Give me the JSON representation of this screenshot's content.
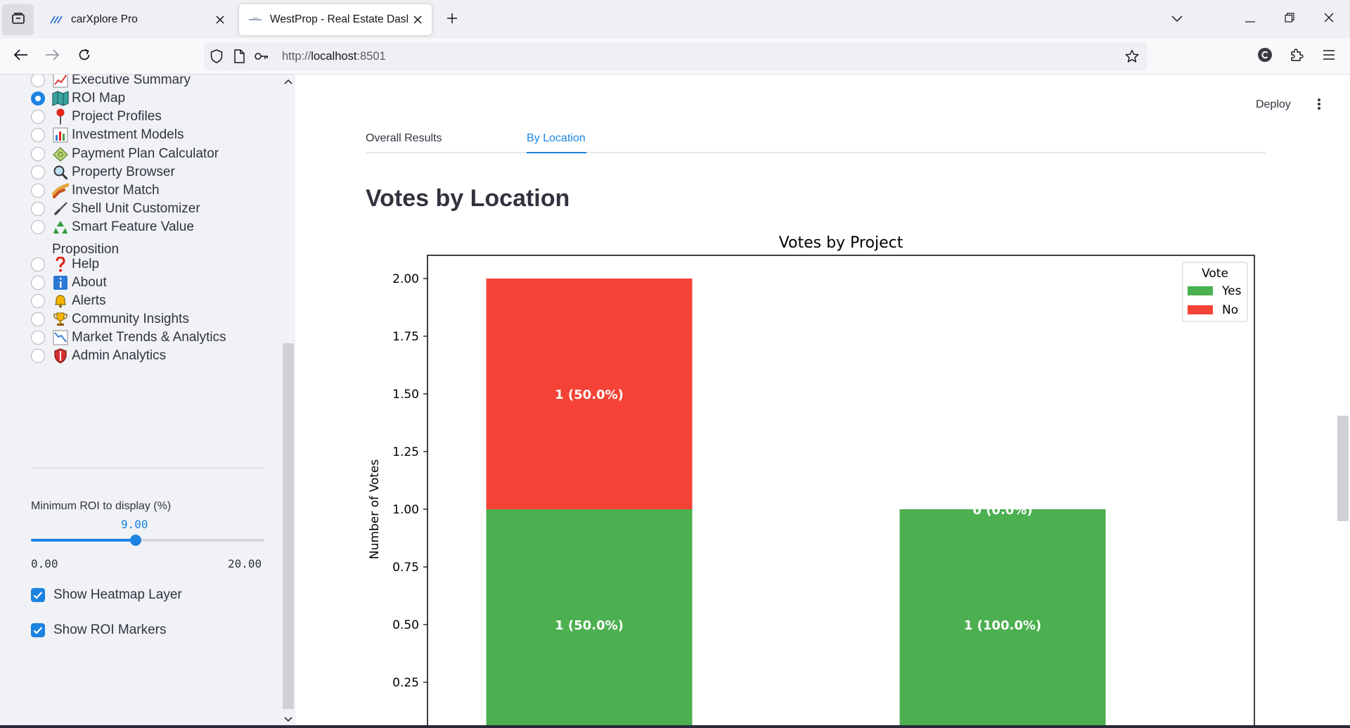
{
  "browser": {
    "tabs": [
      {
        "title": "carXplore Pro",
        "active": false
      },
      {
        "title": "WestProp - Real Estate Dashboard",
        "active": true
      }
    ],
    "url": {
      "scheme": "http://",
      "host": "localhost",
      "port": ":8501"
    }
  },
  "sidebar": {
    "nav_items": [
      {
        "label": "Executive Summary",
        "icon": "chart-up-icon",
        "selected": false
      },
      {
        "label": "ROI Map",
        "icon": "map-icon",
        "selected": true
      },
      {
        "label": "Project Profiles",
        "icon": "pushpin-icon",
        "selected": false
      },
      {
        "label": "Investment Models",
        "icon": "bar-chart-icon",
        "selected": false
      },
      {
        "label": "Payment Plan Calculator",
        "icon": "money-icon",
        "selected": false
      },
      {
        "label": "Property Browser",
        "icon": "magnifier-icon",
        "selected": false
      },
      {
        "label": "Investor Match",
        "icon": "handshake-icon",
        "selected": false
      },
      {
        "label": "Shell Unit Customizer",
        "icon": "paintbrush-icon",
        "selected": false
      },
      {
        "label": "Smart Feature Value",
        "label_line2": "Proposition",
        "icon": "recycle-icon",
        "selected": false
      },
      {
        "label": "Help",
        "icon": "question-icon",
        "selected": false
      },
      {
        "label": "About",
        "icon": "info-icon",
        "selected": false
      },
      {
        "label": "Alerts",
        "icon": "bell-icon",
        "selected": false
      },
      {
        "label": "Community Insights",
        "icon": "trophy-icon",
        "selected": false
      },
      {
        "label": "Market Trends & Analytics",
        "icon": "chart-down-icon",
        "selected": false
      },
      {
        "label": "Admin Analytics",
        "icon": "shield-icon",
        "selected": false
      }
    ],
    "slider": {
      "label": "Minimum ROI to display (%)",
      "value": "9.00",
      "min": "0.00",
      "max": "20.00",
      "fraction": 0.45
    },
    "checkboxes": [
      {
        "label": "Show Heatmap Layer",
        "checked": true
      },
      {
        "label": "Show ROI Markers",
        "checked": true
      }
    ]
  },
  "main": {
    "deploy_label": "Deploy",
    "tabs": [
      {
        "label": "Overall Results",
        "active": false
      },
      {
        "label": "By Location",
        "active": true
      }
    ],
    "section_title": "Votes by Location"
  },
  "colors": {
    "accent": "#1c83e1",
    "yes": "#4caf50",
    "no": "#f44336"
  },
  "chart_data": {
    "type": "bar",
    "stacked": true,
    "title": "Votes by Project",
    "xlabel": "",
    "ylabel": "Number of Votes",
    "ylim": [
      0,
      2.15
    ],
    "yticks": [
      "0.25",
      "0.50",
      "0.75",
      "1.00",
      "1.25",
      "1.50",
      "1.75",
      "2.00"
    ],
    "legend": {
      "title": "Vote",
      "position": "top-right"
    },
    "series": [
      {
        "name": "Yes",
        "color": "#4caf50",
        "values": [
          1,
          1
        ],
        "labels": [
          "1 (50.0%)",
          "1 (100.0%)"
        ]
      },
      {
        "name": "No",
        "color": "#f44336",
        "values": [
          1,
          0
        ],
        "labels": [
          "1 (50.0%)",
          "0 (0.0%)"
        ]
      }
    ]
  }
}
